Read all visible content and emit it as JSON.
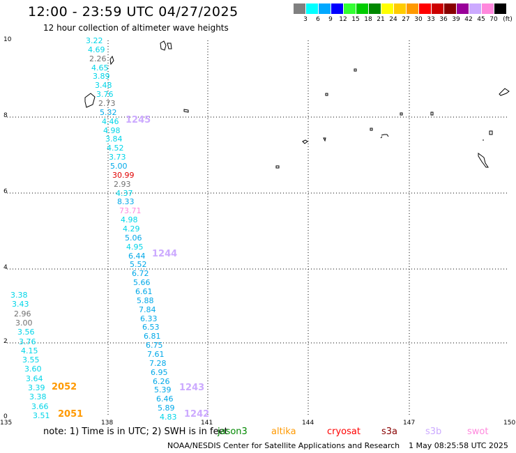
{
  "header": {
    "title": "12:00 - 23:59 UTC 04/27/2025",
    "subtitle": "12 hour collection of altimeter wave heights"
  },
  "legend": {
    "unit": "(ft)",
    "items": [
      {
        "label": "3",
        "color": "#808080"
      },
      {
        "label": "6",
        "color": "#00ffff"
      },
      {
        "label": "9",
        "color": "#00a8ff"
      },
      {
        "label": "12",
        "color": "#0000ff"
      },
      {
        "label": "15",
        "color": "#33ff33"
      },
      {
        "label": "18",
        "color": "#00cc00"
      },
      {
        "label": "21",
        "color": "#008800"
      },
      {
        "label": "24",
        "color": "#ffff00"
      },
      {
        "label": "27",
        "color": "#ffcc00"
      },
      {
        "label": "30",
        "color": "#ff9900"
      },
      {
        "label": "33",
        "color": "#ff0000"
      },
      {
        "label": "36",
        "color": "#cc0000"
      },
      {
        "label": "39",
        "color": "#880000"
      },
      {
        "label": "42",
        "color": "#990099"
      },
      {
        "label": "45",
        "color": "#ccaaff"
      },
      {
        "label": "70",
        "color": "#ff88dd"
      },
      {
        "label": "",
        "color": "#000000"
      }
    ]
  },
  "axes": {
    "lat_labels": [
      "10",
      "8",
      "6",
      "4",
      "2",
      "0"
    ],
    "lon_labels": [
      "135",
      "138",
      "141",
      "144",
      "147",
      "150"
    ]
  },
  "track_a": [
    {
      "v": "3.22",
      "c": "#00d5e8"
    },
    {
      "v": "4.69",
      "c": "#00d5e8"
    },
    {
      "v": "2.26",
      "c": "#707070"
    },
    {
      "v": "4.65",
      "c": "#00d5e8"
    },
    {
      "v": "3.89",
      "c": "#00d5e8"
    },
    {
      "v": "3.48",
      "c": "#00d5e8"
    },
    {
      "v": "3.76",
      "c": "#00d5e8"
    },
    {
      "v": "2.73",
      "c": "#707070"
    },
    {
      "v": "5.32",
      "c": "#00a8e8"
    },
    {
      "v": "4.46",
      "c": "#00d5e8"
    },
    {
      "v": "4.98",
      "c": "#00d5e8"
    },
    {
      "v": "3.84",
      "c": "#00d5e8"
    },
    {
      "v": "4.52",
      "c": "#00d5e8"
    },
    {
      "v": "3.73",
      "c": "#00d5e8"
    },
    {
      "v": "5.00",
      "c": "#00a8e8"
    },
    {
      "v": "30.99",
      "c": "#e00000"
    },
    {
      "v": "2.93",
      "c": "#707070"
    },
    {
      "v": "4.37",
      "c": "#00d5e8"
    },
    {
      "v": "8.33",
      "c": "#00a8e8"
    },
    {
      "v": "73.71",
      "c": "#ff88dd"
    },
    {
      "v": "4.98",
      "c": "#00d5e8"
    },
    {
      "v": "4.29",
      "c": "#00d5e8"
    },
    {
      "v": "5.06",
      "c": "#00a8e8"
    },
    {
      "v": "4.95",
      "c": "#00d5e8"
    },
    {
      "v": "6.44",
      "c": "#00a8e8"
    },
    {
      "v": "5.52",
      "c": "#00a8e8"
    },
    {
      "v": "6.72",
      "c": "#00a8e8"
    },
    {
      "v": "5.66",
      "c": "#00a8e8"
    },
    {
      "v": "6.61",
      "c": "#00a8e8"
    },
    {
      "v": "5.88",
      "c": "#00a8e8"
    },
    {
      "v": "7.84",
      "c": "#00a8e8"
    },
    {
      "v": "6.33",
      "c": "#00a8e8"
    },
    {
      "v": "6.53",
      "c": "#00a8e8"
    },
    {
      "v": "6.81",
      "c": "#00a8e8"
    },
    {
      "v": "6.75",
      "c": "#00a8e8"
    },
    {
      "v": "7.61",
      "c": "#00a8e8"
    },
    {
      "v": "7.28",
      "c": "#00a8e8"
    },
    {
      "v": "6.95",
      "c": "#00a8e8"
    },
    {
      "v": "6.26",
      "c": "#00a8e8"
    },
    {
      "v": "5.39",
      "c": "#00a8e8"
    },
    {
      "v": "6.46",
      "c": "#00a8e8"
    },
    {
      "v": "5.89",
      "c": "#00a8e8"
    },
    {
      "v": "4.83",
      "c": "#00d5e8"
    }
  ],
  "track_b": [
    {
      "v": "3.38",
      "c": "#00d5e8"
    },
    {
      "v": "3.43",
      "c": "#00d5e8"
    },
    {
      "v": "2.96",
      "c": "#707070"
    },
    {
      "v": "3.00",
      "c": "#707070"
    },
    {
      "v": "3.56",
      "c": "#00d5e8"
    },
    {
      "v": "3.76",
      "c": "#00d5e8"
    },
    {
      "v": "4.15",
      "c": "#00d5e8"
    },
    {
      "v": "3.55",
      "c": "#00d5e8"
    },
    {
      "v": "3.60",
      "c": "#00d5e8"
    },
    {
      "v": "3.64",
      "c": "#00d5e8"
    },
    {
      "v": "3.39",
      "c": "#00d5e8"
    },
    {
      "v": "3.38",
      "c": "#00d5e8"
    },
    {
      "v": "3.66",
      "c": "#00d5e8"
    },
    {
      "v": "3.51",
      "c": "#00d5e8"
    }
  ],
  "passes": [
    {
      "label": "1245",
      "color": "#ccaaff"
    },
    {
      "label": "1244",
      "color": "#ccaaff"
    },
    {
      "label": "1243",
      "color": "#ccaaff"
    },
    {
      "label": "1242",
      "color": "#ccaaff"
    },
    {
      "label": "2052",
      "color": "#ff9900"
    },
    {
      "label": "2051",
      "color": "#ff9900"
    }
  ],
  "footer": {
    "note": "note:  1) Time is in UTC;  2) SWH is in feet",
    "satellites": [
      {
        "name": "jason3",
        "color": "#008800"
      },
      {
        "name": "altika",
        "color": "#ff9900"
      },
      {
        "name": "cryosat",
        "color": "#ff0000"
      },
      {
        "name": "s3a",
        "color": "#880000"
      },
      {
        "name": "s3b",
        "color": "#ccaaff"
      },
      {
        "name": "swot",
        "color": "#ff88dd"
      }
    ],
    "credit": "NOAA/NESDIS Center for Satellite Applications and Research",
    "generated": "1 May 08:25:58 UTC 2025"
  }
}
